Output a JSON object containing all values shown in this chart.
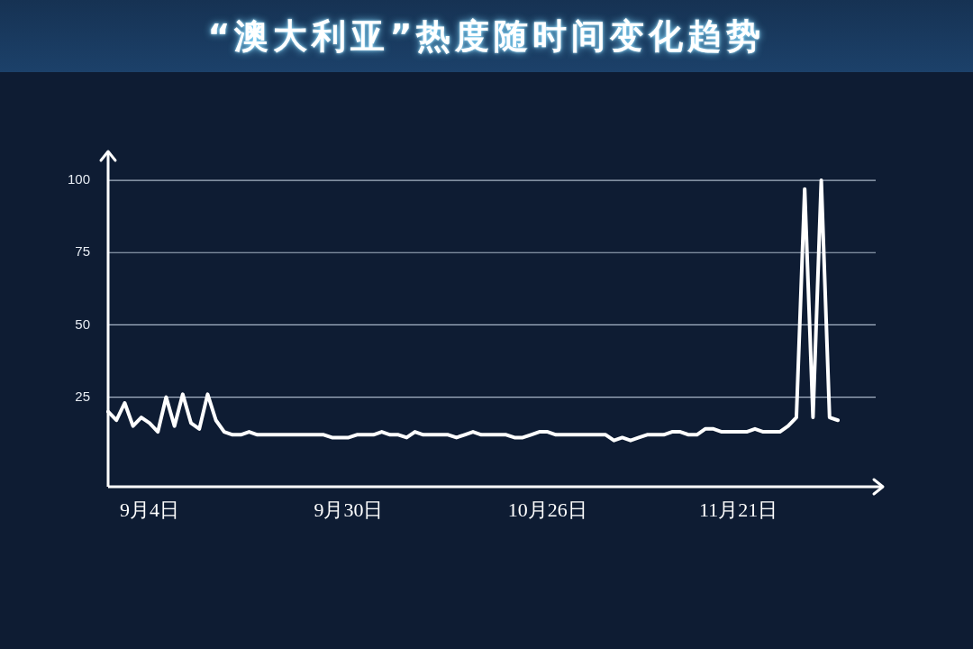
{
  "chart_data": {
    "type": "line",
    "title": "“澳大利亚”热度随时间变化趋势",
    "categories": [
      null,
      null,
      null,
      null,
      null,
      "9月4日",
      null,
      null,
      null,
      null,
      null,
      null,
      null,
      null,
      null,
      null,
      null,
      null,
      null,
      null,
      null,
      null,
      null,
      null,
      null,
      null,
      null,
      null,
      null,
      "9月30日",
      null,
      null,
      null,
      null,
      null,
      null,
      null,
      null,
      null,
      null,
      null,
      null,
      null,
      null,
      null,
      null,
      null,
      null,
      null,
      null,
      null,
      null,
      null,
      "10月26日",
      null,
      null,
      null,
      null,
      null,
      null,
      null,
      null,
      null,
      null,
      null,
      null,
      null,
      null,
      null,
      null,
      null,
      null,
      null,
      null,
      null,
      null,
      "11月21日",
      null,
      null,
      null,
      null,
      null,
      null,
      null,
      null,
      null,
      null,
      null,
      null
    ],
    "values": [
      20,
      17,
      23,
      15,
      18,
      16,
      13,
      25,
      15,
      26,
      16,
      14,
      26,
      17,
      13,
      12,
      12,
      13,
      12,
      12,
      12,
      12,
      12,
      12,
      12,
      12,
      12,
      11,
      11,
      11,
      12,
      12,
      12,
      13,
      12,
      12,
      11,
      13,
      12,
      12,
      12,
      12,
      11,
      12,
      13,
      12,
      12,
      12,
      12,
      11,
      11,
      12,
      13,
      13,
      12,
      12,
      12,
      12,
      12,
      12,
      12,
      10,
      11,
      10,
      11,
      12,
      12,
      12,
      13,
      13,
      12,
      12,
      14,
      14,
      13,
      13,
      13,
      13,
      14,
      13,
      13,
      13,
      15,
      18,
      97,
      18,
      100,
      18,
      17
    ],
    "color": "#ffffff",
    "ylim": [
      -6,
      110
    ],
    "yticks": [
      25,
      50,
      75,
      100
    ],
    "grid": "y",
    "marker": "none"
  }
}
